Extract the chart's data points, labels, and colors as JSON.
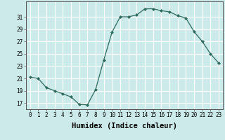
{
  "x": [
    0,
    1,
    2,
    3,
    4,
    5,
    6,
    7,
    8,
    9,
    10,
    11,
    12,
    13,
    14,
    15,
    16,
    17,
    18,
    19,
    20,
    21,
    22,
    23
  ],
  "y": [
    21.2,
    21.0,
    19.5,
    19.0,
    18.5,
    18.0,
    16.8,
    16.7,
    19.2,
    24.0,
    28.5,
    31.0,
    31.0,
    31.3,
    32.3,
    32.3,
    32.0,
    31.8,
    31.2,
    30.8,
    28.6,
    27.0,
    25.0,
    23.5
  ],
  "line_color": "#2e6b5e",
  "marker": "D",
  "markersize": 2.0,
  "bg_color": "#cdeaea",
  "grid_color": "#ffffff",
  "xlabel": "Humidex (Indice chaleur)",
  "ylim": [
    16,
    33.5
  ],
  "xlim": [
    -0.5,
    23.5
  ],
  "yticks": [
    17,
    19,
    21,
    23,
    25,
    27,
    29,
    31
  ],
  "xticks": [
    0,
    1,
    2,
    3,
    4,
    5,
    6,
    7,
    8,
    9,
    10,
    11,
    12,
    13,
    14,
    15,
    16,
    17,
    18,
    19,
    20,
    21,
    22,
    23
  ],
  "tick_fontsize": 5.5,
  "label_fontsize": 7.5,
  "linewidth": 0.9
}
